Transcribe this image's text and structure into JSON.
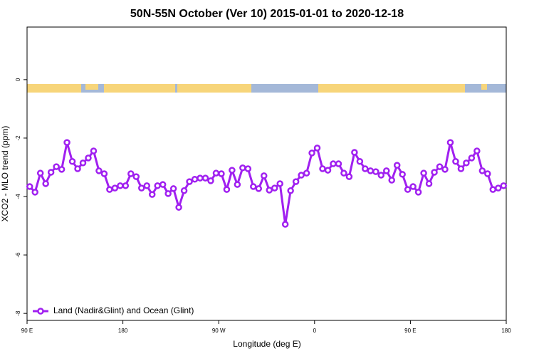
{
  "chart_data": {
    "type": "line",
    "title": "50N-55N October (Ver 10)   2015-01-01 to 2020-12-18",
    "xlabel": "Longitude (deg E)",
    "ylabel": "XCO2 - MLO trend (ppm)",
    "x": [
      92.5,
      97.5,
      102.5,
      107.5,
      112.5,
      117.5,
      122.5,
      127.5,
      132.5,
      137.5,
      142.5,
      147.5,
      152.5,
      157.5,
      162.5,
      167.5,
      172.5,
      177.5,
      182.5,
      187.5,
      192.5,
      197.5,
      202.5,
      207.5,
      212.5,
      217.5,
      222.5,
      227.5,
      232.5,
      237.5,
      242.5,
      247.5,
      252.5,
      257.5,
      262.5,
      267.5,
      272.5,
      277.5,
      282.5,
      287.5,
      292.5,
      297.5,
      302.5,
      307.5,
      312.5,
      317.5,
      322.5,
      327.5,
      332.5,
      337.5,
      342.5,
      347.5,
      352.5,
      357.5,
      362.5,
      367.5,
      372.5,
      377.5,
      382.5,
      387.5,
      392.5,
      397.5,
      402.5,
      407.5,
      412.5,
      417.5,
      422.5,
      427.5,
      432.5,
      437.5,
      442.5,
      447.5,
      452.5,
      457.5,
      462.5,
      467.5,
      472.5,
      477.5,
      482.5,
      487.5,
      492.5,
      497.5,
      502.5,
      507.5,
      512.5,
      517.5,
      522.5,
      527.5,
      532.5,
      537.5
    ],
    "series": [
      {
        "name": "Land (Nadir&Glint) and Ocean (Glint)",
        "color": "#a020f0",
        "values": [
          -3.66,
          -3.85,
          -3.2,
          -3.56,
          -3.17,
          -2.98,
          -3.07,
          -2.15,
          -2.8,
          -3.05,
          -2.85,
          -2.68,
          -2.44,
          -3.12,
          -3.22,
          -3.76,
          -3.71,
          -3.63,
          -3.63,
          -3.22,
          -3.32,
          -3.71,
          -3.63,
          -3.93,
          -3.63,
          -3.59,
          -3.9,
          -3.73,
          -4.37,
          -3.8,
          -3.49,
          -3.41,
          -3.37,
          -3.37,
          -3.46,
          -3.2,
          -3.22,
          -3.76,
          -3.1,
          -3.59,
          -3.02,
          -3.05,
          -3.66,
          -3.73,
          -3.29,
          -3.78,
          -3.71,
          -3.56,
          -4.95,
          -3.8,
          -3.49,
          -3.27,
          -3.2,
          -2.51,
          -2.34,
          -3.05,
          -3.1,
          -2.88,
          -2.88,
          -3.2,
          -3.32,
          -2.49,
          -2.8,
          -3.05,
          -3.12,
          -3.15,
          -3.27,
          -3.12,
          -3.44,
          -2.93,
          -3.24,
          -3.76,
          -3.66,
          -3.85,
          -3.2,
          -3.56,
          -3.17,
          -2.98,
          -3.07,
          -2.15,
          -2.8,
          -3.05,
          -2.85,
          -2.68,
          -2.44,
          -3.12,
          -3.22,
          -3.76,
          -3.71,
          -3.63
        ]
      }
    ],
    "xlim": [
      90,
      540
    ],
    "xticks": [
      {
        "value": 90,
        "label": "90 E"
      },
      180,
      {
        "value": 270,
        "label": "90 W"
      },
      {
        "value": 360,
        "label": "0"
      },
      {
        "value": 450,
        "label": "90 E"
      },
      {
        "value": 540,
        "label": "180"
      }
    ],
    "ylim": [
      -8.24,
      1.8
    ],
    "yticks": [
      0,
      -2,
      -4,
      -6,
      -8
    ],
    "legend": "bottomleft"
  }
}
